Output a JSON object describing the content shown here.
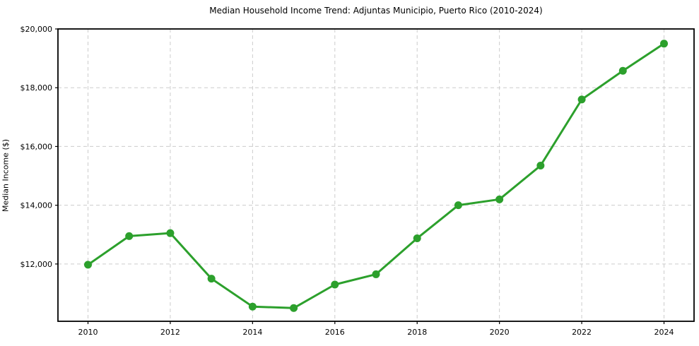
{
  "chart_data": {
    "type": "line",
    "title": "Median Household Income Trend: Adjuntas Municipio, Puerto Rico (2010-2024)",
    "xlabel": "",
    "ylabel": "Median Income ($)",
    "x": [
      2010,
      2011,
      2012,
      2013,
      2014,
      2015,
      2016,
      2017,
      2018,
      2019,
      2020,
      2021,
      2022,
      2023,
      2024
    ],
    "series": [
      {
        "name": "Median Household Income",
        "values": [
          11975,
          12950,
          13050,
          11500,
          10550,
          10500,
          11300,
          11650,
          12875,
          14000,
          14200,
          15350,
          17600,
          18575,
          19500
        ]
      }
    ],
    "x_ticks": [
      {
        "value": 2010,
        "label": "2010"
      },
      {
        "value": 2012,
        "label": "2012"
      },
      {
        "value": 2014,
        "label": "2014"
      },
      {
        "value": 2016,
        "label": "2016"
      },
      {
        "value": 2018,
        "label": "2018"
      },
      {
        "value": 2020,
        "label": "2020"
      },
      {
        "value": 2022,
        "label": "2022"
      },
      {
        "value": 2024,
        "label": "2024"
      }
    ],
    "y_ticks": [
      {
        "value": 12000,
        "label": "$12,000"
      },
      {
        "value": 14000,
        "label": "$14,000"
      },
      {
        "value": 16000,
        "label": "$16,000"
      },
      {
        "value": 18000,
        "label": "$18,000"
      },
      {
        "value": 20000,
        "label": "$20,000"
      }
    ],
    "xlim": [
      2009.27,
      2024.73
    ],
    "ylim": [
      10050,
      20000
    ],
    "grid": true,
    "legend": "none",
    "line_color": "#2ca02c",
    "marker_color": "#2ca02c",
    "grid_color": "#cccccc",
    "frame_color": "#000000"
  }
}
